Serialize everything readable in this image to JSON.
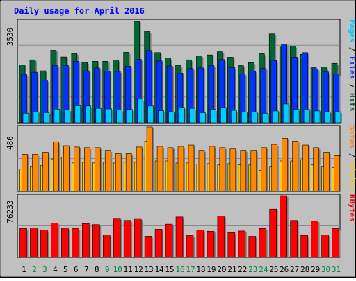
{
  "chart_data": {
    "title": "Daily usage for April 2016",
    "type": "bar",
    "colors": {
      "background": "#c0c0c0",
      "title": "#0000ff",
      "pages": "#00ccff",
      "files": "#0033ff",
      "hits": "#006633",
      "visits": "#ffcc00",
      "sites": "#ff8800",
      "kbytes": "#ff0000",
      "weekday_label": "#000000",
      "weekend_label": "#007f3f"
    },
    "days": [
      "1",
      "2",
      "3",
      "4",
      "5",
      "6",
      "7",
      "8",
      "9",
      "10",
      "11",
      "12",
      "13",
      "14",
      "15",
      "16",
      "17",
      "18",
      "19",
      "20",
      "21",
      "22",
      "23",
      "24",
      "25",
      "26",
      "27",
      "28",
      "29",
      "30",
      "31"
    ],
    "weekend_days": [
      "2",
      "3",
      "9",
      "10",
      "16",
      "17",
      "23",
      "24",
      "30",
      "31"
    ],
    "panels": [
      {
        "id": "hits-files-pages",
        "max_label": "3530",
        "ymax": 3530,
        "legend": [
          {
            "text": "Pages",
            "color": "#00ccff"
          },
          {
            "text": " / ",
            "color": "#000000"
          },
          {
            "text": "Files",
            "color": "#0033ff"
          },
          {
            "text": " / ",
            "color": "#000000"
          },
          {
            "text": "Hits",
            "color": "#006633"
          }
        ],
        "series": [
          {
            "name": "Hits",
            "values": [
              2010,
              2180,
              1800,
              2510,
              2280,
              2400,
              2090,
              2130,
              2130,
              2170,
              2440,
              3520,
              3170,
              2430,
              2240,
              1990,
              2180,
              2320,
              2350,
              2460,
              2270,
              1980,
              2080,
              2390,
              3080,
              2620,
              2650,
              2370,
              1910,
              1930,
              2060
            ]
          },
          {
            "name": "Files",
            "values": [
              1680,
              1750,
              1470,
              1990,
              1990,
              2130,
              1800,
              1900,
              1790,
              1780,
              1960,
              2200,
              2500,
              2140,
              1970,
              1720,
              1880,
              1900,
              1990,
              2190,
              1910,
              1690,
              1790,
              1880,
              2160,
              2720,
              2270,
              2430,
              1860,
              1760,
              1690
            ]
          },
          {
            "name": "Pages",
            "values": [
              330,
              380,
              350,
              470,
              450,
              590,
              580,
              500,
              480,
              450,
              460,
              820,
              580,
              420,
              380,
              530,
              500,
              350,
              460,
              530,
              430,
              370,
              380,
              330,
              410,
              650,
              460,
              470,
              410,
              380,
              380
            ]
          }
        ]
      },
      {
        "id": "visits-sites",
        "max_label": "486",
        "ymax": 486,
        "legend": [
          {
            "text": "Sites",
            "color": "#ff8800"
          },
          {
            "text": " / ",
            "color": "#000000"
          },
          {
            "text": "Visits",
            "color": "#ffcc00"
          }
        ],
        "series": [
          {
            "name": "Sites",
            "values": [
              280,
              280,
              295,
              375,
              345,
              335,
              330,
              330,
              310,
              285,
              285,
              335,
              486,
              340,
              330,
              340,
              350,
              310,
              340,
              330,
              320,
              310,
              310,
              330,
              355,
              400,
              380,
              350,
              330,
              295,
              270
            ]
          },
          {
            "name": "Visits",
            "values": [
              170,
              190,
              195,
              245,
              260,
              215,
              220,
              215,
              220,
              215,
              220,
              220,
              380,
              230,
              230,
              215,
              215,
              205,
              210,
              200,
              210,
              200,
              200,
              160,
              190,
              230,
              230,
              240,
              200,
              190,
              180
            ]
          }
        ]
      },
      {
        "id": "kbytes",
        "max_label": "76233",
        "ymax": 76233,
        "legend": [
          {
            "text": "KBytes",
            "color": "#ff0000"
          }
        ],
        "series": [
          {
            "name": "KBytes",
            "values": [
              35700,
              36500,
              33800,
              42500,
              36100,
              35900,
              41800,
              40500,
              27900,
              48200,
              45600,
              47900,
              26200,
              34800,
              41000,
              49800,
              27000,
              34000,
              32300,
              51000,
              30700,
              32600,
              26100,
              35700,
              59800,
              76200,
              45600,
              27200,
              45100,
              27900,
              35700
            ]
          }
        ]
      }
    ]
  }
}
